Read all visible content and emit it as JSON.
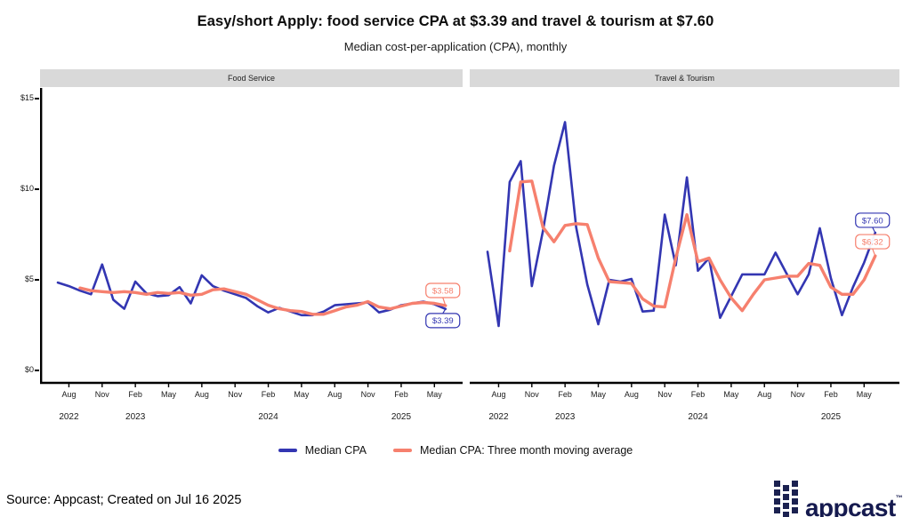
{
  "title": "Easy/short Apply: food service CPA at $3.39 and travel & tourism at $7.60",
  "subtitle": "Median cost-per-application (CPA), monthly",
  "colors": {
    "blue": "#3336b2",
    "salmon": "#f6806e",
    "strip_bg": "#d9d9d9",
    "axis": "#000000",
    "logo_navy": "#1b2150"
  },
  "y_axis": {
    "ticks": [
      {
        "label": "$0",
        "value": 0
      },
      {
        "label": "$5",
        "value": 5
      },
      {
        "label": "$10",
        "value": 10
      },
      {
        "label": "$15",
        "value": 15
      }
    ],
    "range": [
      0,
      15.5
    ]
  },
  "x_axis": {
    "tick_month_indices": [
      1,
      4,
      7,
      10,
      13,
      16,
      19,
      22,
      25,
      28,
      31,
      34
    ],
    "tick_labels": [
      "Aug",
      "Nov",
      "Feb",
      "May",
      "Aug",
      "Nov",
      "Feb",
      "May",
      "Aug",
      "Nov",
      "Feb",
      "May"
    ],
    "year_labels": [
      {
        "label": "2022",
        "month_index": 1
      },
      {
        "label": "2023",
        "month_index": 7
      },
      {
        "label": "2024",
        "month_index": 19
      },
      {
        "label": "2025",
        "month_index": 31
      }
    ]
  },
  "chart_data": [
    {
      "type": "line",
      "panel": "Food Service",
      "x": [
        "Jul 2022",
        "Aug 2022",
        "Sep 2022",
        "Oct 2022",
        "Nov 2022",
        "Dec 2022",
        "Jan 2023",
        "Feb 2023",
        "Mar 2023",
        "Apr 2023",
        "May 2023",
        "Jun 2023",
        "Jul 2023",
        "Aug 2023",
        "Sep 2023",
        "Oct 2023",
        "Nov 2023",
        "Dec 2023",
        "Jan 2024",
        "Feb 2024",
        "Mar 2024",
        "Apr 2024",
        "May 2024",
        "Jun 2024",
        "Jul 2024",
        "Aug 2024",
        "Sep 2024",
        "Oct 2024",
        "Nov 2024",
        "Dec 2024",
        "Jan 2025",
        "Feb 2025",
        "Mar 2025",
        "Apr 2025",
        "May 2025",
        "Jun 2025"
      ],
      "series": [
        {
          "key": "median",
          "name": "Median CPA",
          "color_key": "blue",
          "values": [
            4.85,
            4.65,
            4.4,
            4.2,
            5.85,
            3.9,
            3.4,
            4.9,
            4.25,
            4.1,
            4.15,
            4.6,
            3.7,
            5.25,
            4.65,
            4.4,
            4.2,
            4.0,
            3.55,
            3.2,
            3.45,
            3.25,
            3.05,
            3.05,
            3.25,
            3.6,
            3.65,
            3.7,
            3.75,
            3.2,
            3.35,
            3.6,
            3.7,
            3.8,
            3.65,
            3.39
          ],
          "end_label": {
            "text": "$3.39",
            "dy": 13
          }
        },
        {
          "key": "ma",
          "name": "Median CPA: Three month moving average",
          "color_key": "salmon",
          "values": [
            null,
            null,
            4.55,
            4.4,
            4.35,
            4.3,
            4.35,
            4.3,
            4.2,
            4.3,
            4.25,
            4.3,
            4.15,
            4.2,
            4.45,
            4.5,
            4.35,
            4.2,
            3.9,
            3.6,
            3.4,
            3.3,
            3.25,
            3.1,
            3.1,
            3.3,
            3.5,
            3.6,
            3.8,
            3.5,
            3.4,
            3.55,
            3.7,
            3.75,
            3.7,
            3.58
          ],
          "end_label": {
            "text": "$3.58",
            "dy": -17
          }
        }
      ]
    },
    {
      "type": "line",
      "panel": "Travel & Tourism",
      "x": [
        "Jul 2022",
        "Aug 2022",
        "Sep 2022",
        "Oct 2022",
        "Nov 2022",
        "Dec 2022",
        "Jan 2023",
        "Feb 2023",
        "Mar 2023",
        "Apr 2023",
        "May 2023",
        "Jun 2023",
        "Jul 2023",
        "Aug 2023",
        "Sep 2023",
        "Oct 2023",
        "Nov 2023",
        "Dec 2023",
        "Jan 2024",
        "Feb 2024",
        "Mar 2024",
        "Apr 2024",
        "May 2024",
        "Jun 2024",
        "Jul 2024",
        "Aug 2024",
        "Sep 2024",
        "Oct 2024",
        "Nov 2024",
        "Dec 2024",
        "Jan 2025",
        "Feb 2025",
        "Mar 2025",
        "Apr 2025",
        "May 2025",
        "Jun 2025"
      ],
      "series": [
        {
          "key": "median",
          "name": "Median CPA",
          "color_key": "blue",
          "values": [
            6.55,
            2.45,
            10.4,
            11.55,
            4.65,
            7.7,
            11.3,
            13.7,
            7.9,
            4.75,
            2.55,
            5.0,
            4.9,
            5.05,
            3.25,
            3.3,
            8.6,
            5.8,
            10.65,
            5.5,
            6.2,
            2.9,
            4.1,
            5.3,
            5.3,
            5.3,
            6.5,
            5.35,
            4.2,
            5.3,
            7.85,
            5.1,
            3.05,
            4.6,
            5.95,
            7.6
          ],
          "end_label": {
            "text": "$7.60",
            "dy": -14
          }
        },
        {
          "key": "ma",
          "name": "Median CPA: Three month moving average",
          "color_key": "salmon",
          "values": [
            null,
            null,
            6.6,
            10.4,
            10.45,
            7.9,
            7.1,
            8.0,
            8.1,
            8.05,
            6.2,
            4.9,
            4.85,
            4.8,
            3.95,
            3.55,
            3.5,
            6.2,
            8.6,
            6.0,
            6.2,
            5.0,
            4.0,
            3.3,
            4.2,
            5.0,
            5.1,
            5.2,
            5.2,
            5.9,
            5.8,
            4.6,
            4.2,
            4.2,
            5.0,
            6.32
          ],
          "end_label": {
            "text": "$6.32",
            "dy": -16
          }
        }
      ]
    }
  ],
  "legend": [
    {
      "label": "Median CPA",
      "color_key": "blue"
    },
    {
      "label": "Median CPA: Three month moving average",
      "color_key": "salmon"
    }
  ],
  "footer": {
    "source": "Source: Appcast; Created on Jul 16 2025",
    "logo_text": "appcast",
    "logo_tm": "™"
  }
}
